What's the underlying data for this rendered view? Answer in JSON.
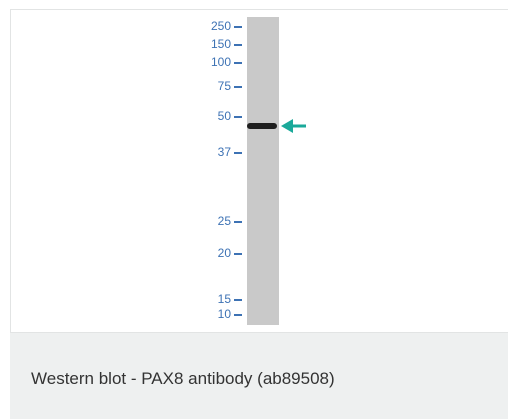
{
  "figure": {
    "ladder": [
      "250",
      "150",
      "100",
      "75",
      "50",
      "37",
      "25",
      "20",
      "15",
      "10"
    ],
    "caption": "Western blot - PAX8 antibody (ab89508)"
  }
}
